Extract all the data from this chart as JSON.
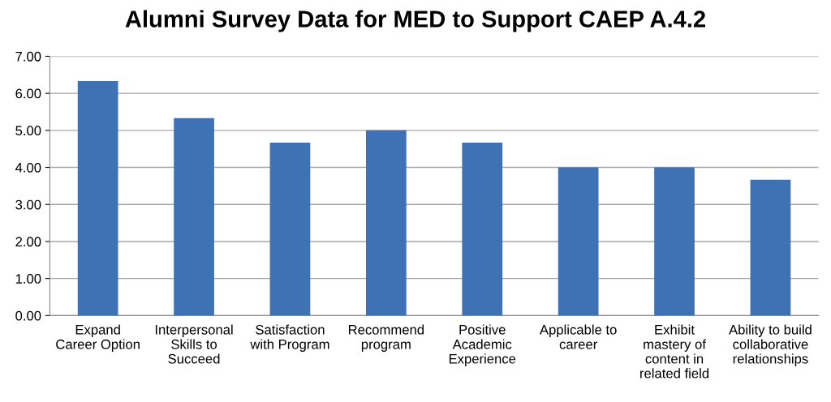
{
  "chart_data": {
    "type": "bar",
    "title": "Alumni Survey Data for MED to Support CAEP A.4.2",
    "categories": [
      "Expand\nCareer Option",
      "Interpersonal\nSkills to\nSucceed",
      "Satisfaction\nwith Program",
      "Recommend\nprogram",
      "Positive\nAcademic\nExperience",
      "Applicable to\ncareer",
      "Exhibit\nmastery of\ncontent in\nrelated field",
      "Ability to build\ncollaborative\nrelationships"
    ],
    "values": [
      6.33,
      5.33,
      4.67,
      5.0,
      4.67,
      4.0,
      4.0,
      3.67
    ],
    "color": "#3f72b5",
    "ylim": [
      0,
      7
    ],
    "yticks": [
      {
        "value": 0,
        "label": "0.00"
      },
      {
        "value": 1,
        "label": "1.00"
      },
      {
        "value": 2,
        "label": "2.00"
      },
      {
        "value": 3,
        "label": "3.00"
      },
      {
        "value": 4,
        "label": "4.00"
      },
      {
        "value": 5,
        "label": "5.00"
      },
      {
        "value": 6,
        "label": "6.00"
      },
      {
        "value": 7,
        "label": "7.00"
      }
    ],
    "grid": "y"
  }
}
